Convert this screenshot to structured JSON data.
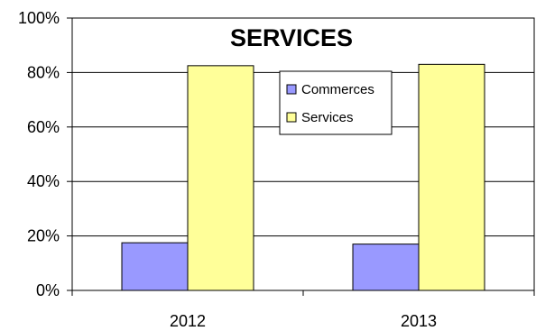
{
  "chart_data": {
    "type": "bar",
    "title": "SERVICES",
    "categories": [
      "2012",
      "2013"
    ],
    "series": [
      {
        "name": "Commerces",
        "values": [
          17.5,
          17
        ],
        "color": "#9999ff"
      },
      {
        "name": "Services",
        "values": [
          82.5,
          83
        ],
        "color": "#ffff99"
      }
    ],
    "ylim": [
      0,
      100
    ],
    "yticks": [
      "0%",
      "20%",
      "40%",
      "60%",
      "80%",
      "100%"
    ],
    "ytick_values": [
      0,
      20,
      40,
      60,
      80,
      100
    ],
    "grid": true,
    "legend_position": "top-center"
  }
}
